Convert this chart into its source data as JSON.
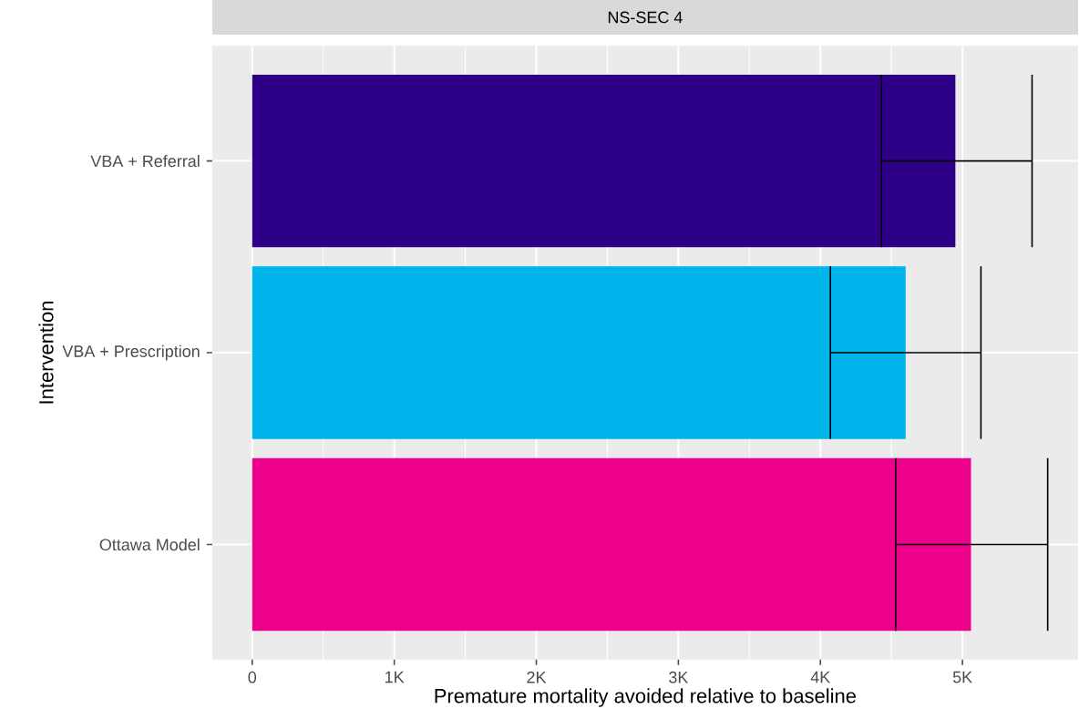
{
  "chart_data": {
    "type": "bar",
    "orientation": "horizontal",
    "title": "NS-SEC 4",
    "xlabel": "Premature mortality avoided relative to baseline",
    "ylabel": "Intervention",
    "categories": [
      "VBA + Referral",
      "VBA + Prescription",
      "Ottawa Model"
    ],
    "values": [
      4950,
      4600,
      5060
    ],
    "errors": [
      [
        4430,
        5490
      ],
      [
        4070,
        5130
      ],
      [
        4530,
        5600
      ]
    ],
    "colors": [
      "#2e0087",
      "#00b4ec",
      "#ec008c"
    ],
    "xlim": [
      -282,
      5814
    ],
    "xticks": [
      {
        "value": 0,
        "label": "0"
      },
      {
        "value": 1000,
        "label": "1K"
      },
      {
        "value": 2000,
        "label": "2K"
      },
      {
        "value": 3000,
        "label": "3K"
      },
      {
        "value": 4000,
        "label": "4K"
      },
      {
        "value": 5000,
        "label": "5K"
      }
    ],
    "grid": true
  }
}
